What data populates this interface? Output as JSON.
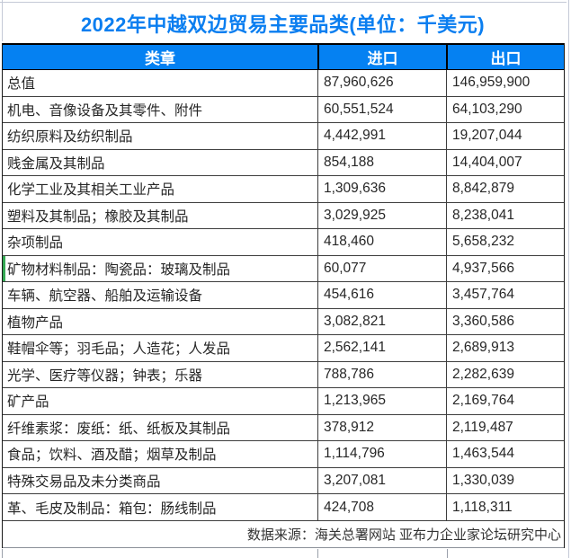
{
  "title": "2022年中越双边贸易主要品类(单位：千美元)",
  "table": {
    "columns": [
      {
        "label": "类章"
      },
      {
        "label": "进口"
      },
      {
        "label": "出口"
      }
    ],
    "rows": [
      {
        "category": "总值",
        "import": "87,960,626",
        "export": "146,959,900",
        "marker": false
      },
      {
        "category": "机电、音像设备及其零件、附件",
        "import": "60,551,524",
        "export": "64,103,290",
        "marker": false
      },
      {
        "category": "纺织原料及纺织制品",
        "import": "4,442,991",
        "export": "19,207,044",
        "marker": false
      },
      {
        "category": "贱金属及其制品",
        "import": "854,188",
        "export": "14,404,007",
        "marker": false
      },
      {
        "category": "化学工业及其相关工业产品",
        "import": "1,309,636",
        "export": "8,842,879",
        "marker": false
      },
      {
        "category": "塑料及其制品；橡胶及其制品",
        "import": "3,029,925",
        "export": "8,238,041",
        "marker": false
      },
      {
        "category": "杂项制品",
        "import": "418,460",
        "export": "5,658,232",
        "marker": false
      },
      {
        "category": "矿物材料制品：陶瓷品：玻璃及制品",
        "import": "60,077",
        "export": "4,937,566",
        "marker": true
      },
      {
        "category": "车辆、航空器、船舶及运输设备",
        "import": "454,616",
        "export": "3,457,764",
        "marker": false
      },
      {
        "category": "植物产品",
        "import": "3,082,821",
        "export": "3,360,586",
        "marker": false
      },
      {
        "category": "鞋帽伞等；羽毛品；人造花；人发品",
        "import": "2,562,141",
        "export": "2,689,913",
        "marker": false
      },
      {
        "category": "光学、医疗等仪器；钟表；乐器",
        "import": "788,786",
        "export": "2,282,639",
        "marker": false
      },
      {
        "category": "矿产品",
        "import": "1,213,965",
        "export": "2,169,764",
        "marker": false
      },
      {
        "category": "纤维素浆：废纸：纸、纸板及其制品",
        "import": "378,912",
        "export": "2,119,487",
        "marker": false
      },
      {
        "category": "食品；饮料、酒及醋；烟草及制品",
        "import": "1,114,796",
        "export": "1,463,544",
        "marker": false
      },
      {
        "category": "特殊交易品及未分类商品",
        "import": "3,207,081",
        "export": "1,330,039",
        "marker": false
      },
      {
        "category": "革、毛皮及制品：箱包：肠线制品",
        "import": "424,708",
        "export": "1,118,311",
        "marker": false
      }
    ]
  },
  "footer": {
    "source": "数据来源：海关总署网站 亚布力企业家论坛研究中心"
  },
  "colors": {
    "header_blue": "#0581f2",
    "title_blue": "#0a7ef0",
    "marker_green": "#34a853"
  },
  "chart_data": {
    "type": "table",
    "title": "2022年中越双边贸易主要品类(单位：千美元)",
    "columns": [
      "类章",
      "进口",
      "出口"
    ],
    "rows": [
      [
        "总值",
        87960626,
        146959900
      ],
      [
        "机电、音像设备及其零件、附件",
        60551524,
        64103290
      ],
      [
        "纺织原料及纺织制品",
        4442991,
        19207044
      ],
      [
        "贱金属及其制品",
        854188,
        14404007
      ],
      [
        "化学工业及其相关工业产品",
        1309636,
        8842879
      ],
      [
        "塑料及其制品；橡胶及其制品",
        3029925,
        8238041
      ],
      [
        "杂项制品",
        418460,
        5658232
      ],
      [
        "矿物材料制品：陶瓷品：玻璃及制品",
        60077,
        4937566
      ],
      [
        "车辆、航空器、船舶及运输设备",
        454616,
        3457764
      ],
      [
        "植物产品",
        3082821,
        3360586
      ],
      [
        "鞋帽伞等；羽毛品；人造花；人发品",
        2562141,
        2689913
      ],
      [
        "光学、医疗等仪器；钟表；乐器",
        788786,
        2282639
      ],
      [
        "矿产品",
        1213965,
        2169764
      ],
      [
        "纤维素浆：废纸：纸、纸板及其制品",
        378912,
        2119487
      ],
      [
        "食品；饮料、酒及醋；烟草及制品",
        1114796,
        1463544
      ],
      [
        "特殊交易品及未分类商品",
        3207081,
        1330039
      ],
      [
        "革、毛皮及制品：箱包：肠线制品",
        424708,
        1118311
      ]
    ],
    "source": "数据来源：海关总署网站 亚布力企业家论坛研究中心"
  }
}
